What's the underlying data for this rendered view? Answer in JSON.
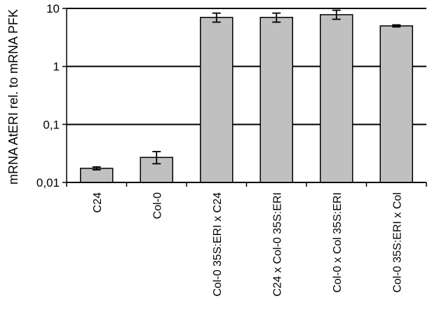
{
  "chart_data": {
    "type": "bar",
    "scale": "log",
    "title": "",
    "xlabel": "",
    "ylabel": "mRNA AtERI rel. to mRNA PFK",
    "ylim": [
      0.01,
      10
    ],
    "yticks": [
      {
        "value": 0.01,
        "label": "0,01"
      },
      {
        "value": 0.1,
        "label": "0,1"
      },
      {
        "value": 1,
        "label": "1"
      },
      {
        "value": 10,
        "label": "10"
      }
    ],
    "grid": true,
    "legend": "none",
    "bar_color": "#c0c0c0",
    "categories": [
      "C24",
      "Col-0",
      "Col-0 35S:ERI x C24",
      "C24 x Col-0 35S:ERI",
      "Col-0 x Col 35S:ERI",
      "Col-0 35S:ERI x Col"
    ],
    "values": [
      0.0175,
      0.027,
      7.0,
      7.0,
      7.8,
      5.0
    ],
    "error_low": [
      0.0165,
      0.021,
      5.8,
      5.8,
      6.5,
      4.8
    ],
    "error_high": [
      0.0185,
      0.034,
      8.3,
      8.3,
      9.3,
      5.2
    ]
  }
}
